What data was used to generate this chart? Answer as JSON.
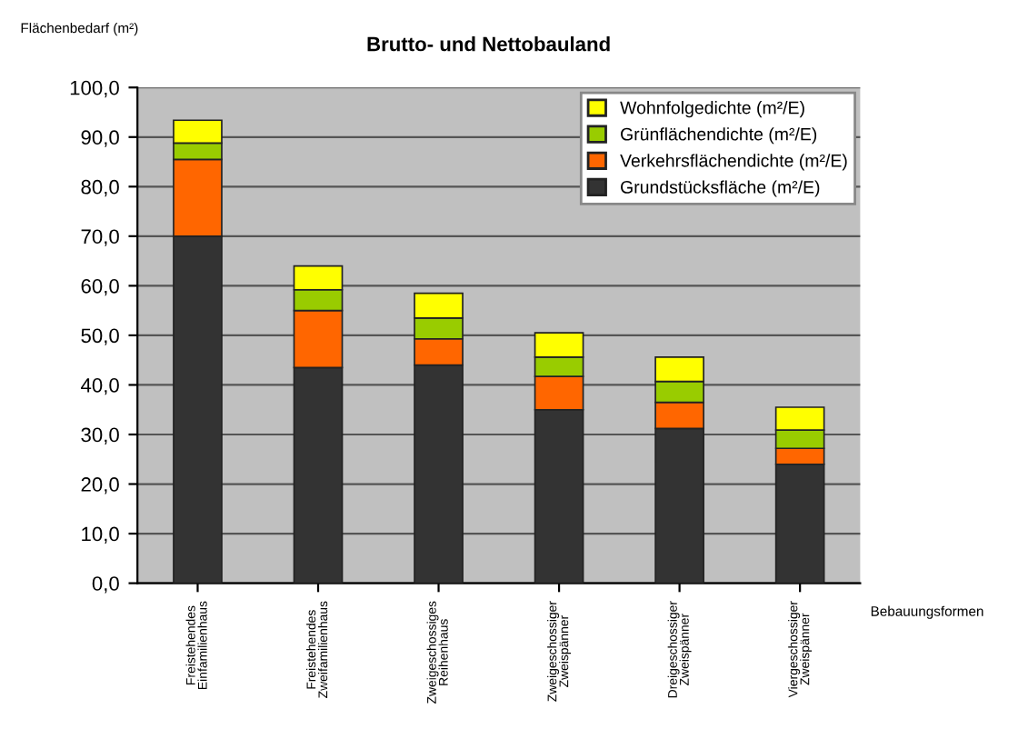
{
  "chart_data": {
    "type": "bar",
    "stacked": true,
    "title": "Brutto- und Nettobauland",
    "ylabel": "Flächenbedarf (m²)",
    "xlabel": "Bebauungsformen",
    "categories": [
      "Freistehendes Einfamilienhaus",
      "Freistehendes Zweifamilienhaus",
      "Zweigeschossiges Reihenhaus",
      "Zweigeschossiger Zweispänner",
      "Dreigeschossiger Zweispänner",
      "Viergeschossiger Zweispänner"
    ],
    "series": [
      {
        "name": "Grundstücksfläche (m²/E)",
        "color": "#333333",
        "values": [
          70,
          43.5,
          44,
          35,
          31.2,
          24
        ]
      },
      {
        "name": "Verkehrsflächendichte (m²/E)",
        "color": "#ff6600",
        "values": [
          15.5,
          11.5,
          5.3,
          6.7,
          5.3,
          3.2
        ]
      },
      {
        "name": "Grünflächendichte (m²/E)",
        "color": "#99cc00",
        "values": [
          3.3,
          4.2,
          4.2,
          3.9,
          4.2,
          3.7
        ]
      },
      {
        "name": "Wohnfolgedichte (m²/E)",
        "color": "#ffff00",
        "values": [
          4.6,
          4.8,
          5,
          4.9,
          4.9,
          4.6
        ]
      }
    ],
    "ylim": [
      0,
      100
    ],
    "yticks": [
      {
        "value": 0,
        "label": "0,0"
      },
      {
        "value": 10,
        "label": "10,0"
      },
      {
        "value": 20,
        "label": "20,0"
      },
      {
        "value": 30,
        "label": "30,0"
      },
      {
        "value": 40,
        "label": "40,0"
      },
      {
        "value": 50,
        "label": "50,0"
      },
      {
        "value": 60,
        "label": "60,0"
      },
      {
        "value": 70,
        "label": "70,0"
      },
      {
        "value": 80,
        "label": "80,0"
      },
      {
        "value": 90,
        "label": "90,0"
      },
      {
        "value": 100,
        "label": "100,0"
      }
    ],
    "grid": "y",
    "legend": "top right"
  }
}
